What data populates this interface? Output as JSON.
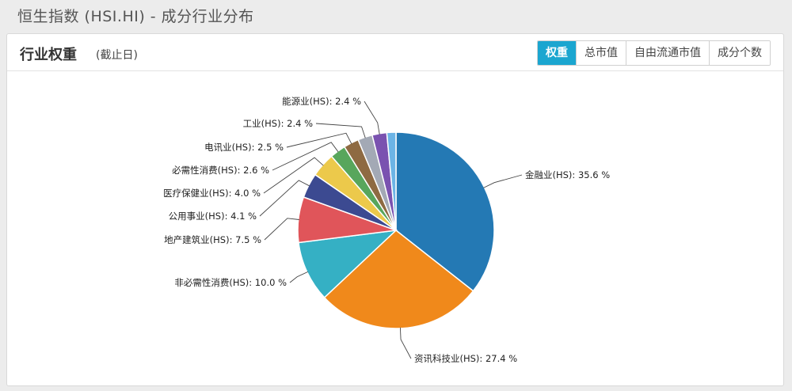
{
  "page": {
    "title": "恒生指数 (HSI.HI) - 成分行业分布"
  },
  "panel": {
    "title": "行业权重",
    "subtitle": "(截止日)"
  },
  "tabs": [
    {
      "label": "权重",
      "active": true
    },
    {
      "label": "总市值",
      "active": false
    },
    {
      "label": "自由流通市值",
      "active": false
    },
    {
      "label": "成分个数",
      "active": false
    }
  ],
  "chart_data": {
    "type": "pie",
    "start_angle_deg": 0,
    "direction": "clockwise",
    "slices": [
      {
        "name": "金融业(HS)",
        "value": 35.6,
        "label": "金融业(HS): 35.6 %",
        "color": "#2479b4"
      },
      {
        "name": "资讯科技业(HS)",
        "value": 27.4,
        "label": "资讯科技业(HS): 27.4 %",
        "color": "#f0891b"
      },
      {
        "name": "非必需性消费(HS)",
        "value": 10.0,
        "label": "非必需性消费(HS): 10.0 %",
        "color": "#35b0c4"
      },
      {
        "name": "地产建筑业(HS)",
        "value": 7.5,
        "label": "地产建筑业(HS): 7.5 %",
        "color": "#e0555a"
      },
      {
        "name": "公用事业(HS)",
        "value": 4.1,
        "label": "公用事业(HS): 4.1 %",
        "color": "#3c4a91"
      },
      {
        "name": "医疗保健业(HS)",
        "value": 4.0,
        "label": "医疗保健业(HS): 4.0 %",
        "color": "#ecc94b"
      },
      {
        "name": "必需性消费(HS)",
        "value": 2.6,
        "label": "必需性消费(HS): 2.6 %",
        "color": "#58a65c"
      },
      {
        "name": "电讯业(HS)",
        "value": 2.5,
        "label": "电讯业(HS): 2.5 %",
        "color": "#8e6a42"
      },
      {
        "name": "工业(HS)",
        "value": 2.4,
        "label": "工业(HS): 2.4 %",
        "color": "#a3a9b5"
      },
      {
        "name": "能源业(HS)",
        "value": 2.4,
        "label": "能源业(HS): 2.4 %",
        "color": "#7a52b0"
      },
      {
        "name": "",
        "value": 1.5,
        "label": "",
        "color": "#6cb4e6"
      }
    ]
  }
}
